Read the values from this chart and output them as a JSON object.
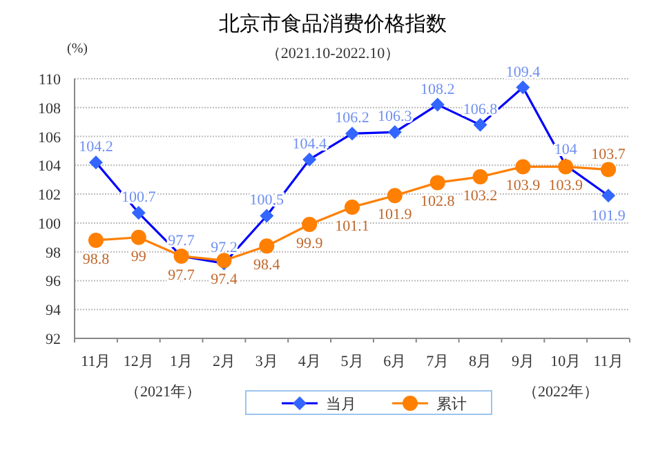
{
  "chart_data": {
    "type": "line",
    "title": "北京市食品消费价格指数",
    "subtitle": "（2021.10-2022.10）",
    "ylabel": "(%)",
    "categories": [
      "11月",
      "12月",
      "1月",
      "2月",
      "3月",
      "4月",
      "5月",
      "6月",
      "7月",
      "8月",
      "9月",
      "10月",
      "11月"
    ],
    "series": [
      {
        "name": "当月",
        "color": "#0000ff",
        "marker": "diamond",
        "values": [
          104.2,
          100.7,
          97.7,
          97.2,
          100.5,
          104.4,
          106.2,
          106.3,
          108.2,
          106.8,
          109.4,
          104,
          101.9
        ]
      },
      {
        "name": "累计",
        "color": "#ff7f00",
        "marker": "circle",
        "values": [
          98.8,
          99,
          97.7,
          97.4,
          98.4,
          99.9,
          101.1,
          101.9,
          102.8,
          103.2,
          103.9,
          103.9,
          103.7
        ]
      }
    ],
    "ylim": [
      92,
      110
    ],
    "yticks": [
      92,
      94,
      96,
      98,
      100,
      102,
      104,
      106,
      108,
      110
    ],
    "grid": "y",
    "legend": "bottom",
    "data_labels": true,
    "annotations": [
      "（2021年）",
      "（2022年）"
    ]
  }
}
